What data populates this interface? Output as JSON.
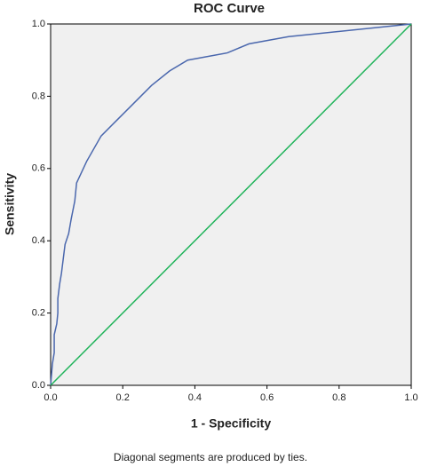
{
  "chart_data": {
    "type": "line",
    "title": "ROC Curve",
    "x_label": "1 - Specificity",
    "y_label": "Sensitivity",
    "note": "Diagonal segments are produced by ties.",
    "xlim": [
      0,
      1
    ],
    "ylim": [
      0,
      1
    ],
    "xticks": [
      {
        "value": 0,
        "label": "0.0"
      },
      0.2,
      0.4,
      0.6,
      0.8,
      {
        "value": 1,
        "label": "1.0"
      }
    ],
    "yticks": [
      {
        "value": 0,
        "label": "0.0"
      },
      0.2,
      0.4,
      0.6,
      0.8,
      {
        "value": 1,
        "label": "1.0"
      }
    ],
    "background": "#f0f0f0",
    "series": [
      {
        "color": "#4a67ad",
        "x": [
          0,
          0.005,
          0.01,
          0.01,
          0.017,
          0.02,
          0.02,
          0.025,
          0.03,
          0.035,
          0.04,
          0.05,
          0.057,
          0.067,
          0.072,
          0.1,
          0.14,
          0.19,
          0.23,
          0.28,
          0.33,
          0.38,
          0.49,
          0.55,
          0.66,
          1
        ],
        "values": [
          0,
          0.06,
          0.09,
          0.14,
          0.17,
          0.2,
          0.24,
          0.28,
          0.31,
          0.35,
          0.39,
          0.42,
          0.46,
          0.51,
          0.56,
          0.62,
          0.69,
          0.74,
          0.78,
          0.83,
          0.87,
          0.9,
          0.92,
          0.945,
          0.965,
          1
        ]
      },
      {
        "color": "#1fb35a",
        "x": [
          0,
          1
        ],
        "values": [
          0,
          1
        ]
      }
    ]
  }
}
